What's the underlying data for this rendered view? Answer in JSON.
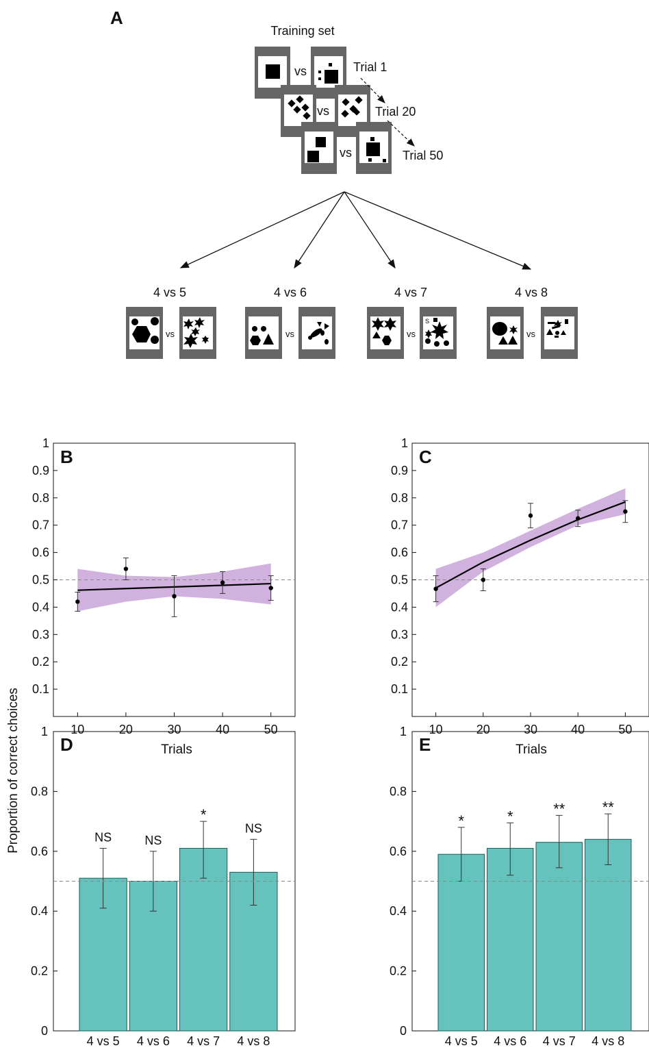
{
  "panel_letters": {
    "a": "A",
    "b": "B",
    "c": "C",
    "d": "D",
    "e": "E"
  },
  "training": {
    "title": "Training set",
    "vs": "vs",
    "trials": [
      "Trial 1",
      "Trial 20",
      "Trial 50"
    ]
  },
  "tests": [
    "4 vs 5",
    "4 vs 6",
    "4 vs 7",
    "4 vs 8"
  ],
  "shared_ylabel": "Proportion of correct choices",
  "chart_data": [
    {
      "panel": "B",
      "type": "line",
      "xlabel": "Trials",
      "ylabel": "Proportion of correct choices",
      "xlim": [
        5,
        55
      ],
      "ylim": [
        0,
        1
      ],
      "xticks": [
        "10",
        "20",
        "30",
        "40",
        "50"
      ],
      "yticks": [
        "0.1",
        "0.2",
        "0.3",
        "0.4",
        "0.5",
        "0.6",
        "0.7",
        "0.8",
        "0.9",
        "1"
      ],
      "chance_line": 0.5,
      "points": [
        {
          "x": 10,
          "y": 0.42,
          "lo": 0.385,
          "hi": 0.455
        },
        {
          "x": 20,
          "y": 0.54,
          "lo": 0.5,
          "hi": 0.58
        },
        {
          "x": 30,
          "y": 0.44,
          "lo": 0.365,
          "hi": 0.515
        },
        {
          "x": 40,
          "y": 0.49,
          "lo": 0.45,
          "hi": 0.53
        },
        {
          "x": 50,
          "y": 0.47,
          "lo": 0.425,
          "hi": 0.515
        }
      ],
      "fit": {
        "x": [
          10,
          20,
          30,
          40,
          50
        ],
        "y": [
          0.462,
          0.468,
          0.474,
          0.48,
          0.486
        ],
        "band_lo": [
          0.385,
          0.42,
          0.44,
          0.43,
          0.41
        ],
        "band_hi": [
          0.54,
          0.515,
          0.51,
          0.53,
          0.56
        ]
      },
      "fit_color": "#000000",
      "band_color": "#c9a5d8"
    },
    {
      "panel": "C",
      "type": "line",
      "xlabel": "Trials",
      "xlim": [
        5,
        55
      ],
      "ylim": [
        0,
        1
      ],
      "xticks": [
        "10",
        "20",
        "30",
        "40",
        "50"
      ],
      "yticks": [
        "0.1",
        "0.2",
        "0.3",
        "0.4",
        "0.5",
        "0.6",
        "0.7",
        "0.8",
        "0.9",
        "1"
      ],
      "chance_line": 0.5,
      "points": [
        {
          "x": 10,
          "y": 0.467,
          "lo": 0.42,
          "hi": 0.515
        },
        {
          "x": 20,
          "y": 0.5,
          "lo": 0.46,
          "hi": 0.54
        },
        {
          "x": 30,
          "y": 0.735,
          "lo": 0.69,
          "hi": 0.78
        },
        {
          "x": 40,
          "y": 0.725,
          "lo": 0.695,
          "hi": 0.755
        },
        {
          "x": 50,
          "y": 0.75,
          "lo": 0.71,
          "hi": 0.79
        }
      ],
      "fit": {
        "x": [
          10,
          20,
          30,
          40,
          50
        ],
        "y": [
          0.47,
          0.565,
          0.645,
          0.72,
          0.785
        ],
        "band_lo": [
          0.4,
          0.53,
          0.62,
          0.7,
          0.74
        ],
        "band_hi": [
          0.54,
          0.6,
          0.68,
          0.76,
          0.835
        ]
      },
      "fit_color": "#000000",
      "band_color": "#c9a5d8"
    },
    {
      "panel": "D",
      "type": "bar",
      "categories": [
        "4 vs 5",
        "4 vs 6",
        "4 vs 7",
        "4 vs 8"
      ],
      "values": [
        0.51,
        0.5,
        0.61,
        0.53
      ],
      "err_lo": [
        0.41,
        0.4,
        0.51,
        0.42
      ],
      "err_hi": [
        0.61,
        0.6,
        0.7,
        0.64
      ],
      "annotations": [
        "NS",
        "NS",
        "*",
        "NS"
      ],
      "ylim": [
        0,
        1
      ],
      "yticks": [
        "0",
        "0.2",
        "0.4",
        "0.6",
        "0.8",
        "1"
      ],
      "chance_line": 0.5,
      "bar_color": "#66c2bd"
    },
    {
      "panel": "E",
      "type": "bar",
      "categories": [
        "4 vs 5",
        "4 vs 6",
        "4 vs 7",
        "4 vs 8"
      ],
      "values": [
        0.59,
        0.61,
        0.63,
        0.64
      ],
      "err_lo": [
        0.5,
        0.52,
        0.545,
        0.555
      ],
      "err_hi": [
        0.68,
        0.695,
        0.72,
        0.725
      ],
      "annotations": [
        "*",
        "*",
        "**",
        "**"
      ],
      "ylim": [
        0,
        1
      ],
      "yticks": [
        "0",
        "0.2",
        "0.4",
        "0.6",
        "0.8",
        "1"
      ],
      "chance_line": 0.5,
      "bar_color": "#66c2bd"
    }
  ]
}
